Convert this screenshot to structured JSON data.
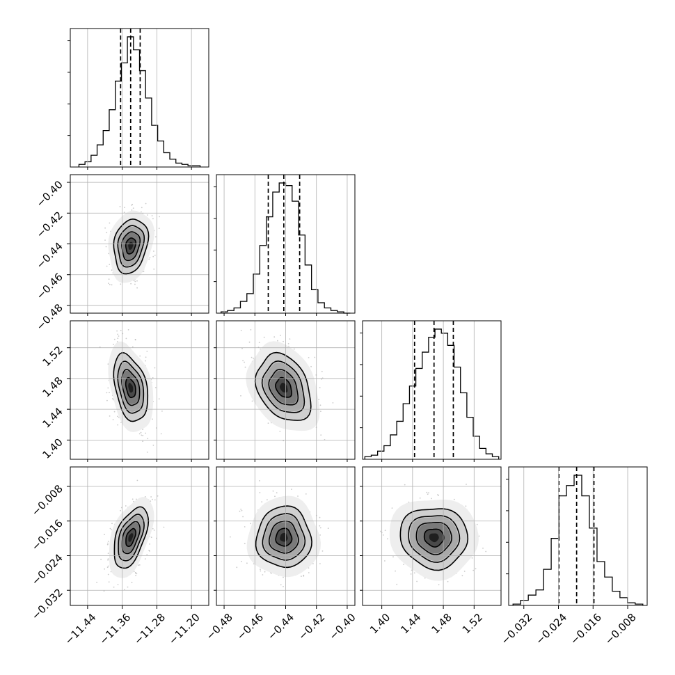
{
  "chart_data": {
    "type": "corner",
    "title": "",
    "parameters": [
      {
        "label": "",
        "range": [
          -11.48,
          -11.16
        ],
        "ticks": [
          -11.44,
          -11.36,
          -11.28,
          -11.2
        ],
        "tick_labels": [
          "−11.44",
          "−11.36",
          "−11.28",
          "−11.20"
        ],
        "quantiles": [
          -11.3637,
          -11.3405,
          -11.3185
        ]
      },
      {
        "label": "",
        "range": [
          -0.485,
          -0.395
        ],
        "ticks": [
          -0.48,
          -0.46,
          -0.44,
          -0.42,
          -0.4
        ],
        "tick_labels": [
          "−0.48",
          "−0.46",
          "−0.44",
          "−0.42",
          "−0.40"
        ],
        "quantiles": [
          -0.4513,
          -0.4412,
          -0.4309
        ]
      },
      {
        "label": "",
        "range": [
          1.375,
          1.555
        ],
        "ticks": [
          1.4,
          1.44,
          1.48,
          1.52
        ],
        "tick_labels": [
          "1.40",
          "1.44",
          "1.48",
          "1.52"
        ],
        "quantiles": [
          1.4426,
          1.4679,
          1.493
        ]
      },
      {
        "label": "",
        "range": [
          -0.0355,
          -0.0035
        ],
        "ticks": [
          -0.032,
          -0.024,
          -0.016,
          -0.008
        ],
        "tick_labels": [
          "−0.032",
          "−0.024",
          "−0.016",
          "−0.008"
        ],
        "quantiles": [
          -0.0239,
          -0.0198,
          -0.0158
        ]
      }
    ],
    "marginals": [
      {
        "param": 0,
        "bin_range": [
          -11.46,
          -11.18
        ],
        "counts": [
          2,
          4,
          9,
          17,
          28,
          44,
          66,
          80,
          100,
          90,
          74,
          53,
          32,
          20,
          11,
          6,
          3,
          2,
          1,
          1
        ]
      },
      {
        "param": 1,
        "bin_range": [
          -0.482,
          -0.398
        ],
        "counts": [
          1,
          2,
          4,
          9,
          15,
          30,
          52,
          74,
          93,
          100,
          98,
          86,
          60,
          37,
          18,
          8,
          4,
          2,
          1,
          0
        ]
      },
      {
        "param": 2,
        "bin_range": [
          1.378,
          1.552
        ],
        "counts": [
          2,
          3,
          6,
          10,
          18,
          28,
          41,
          54,
          67,
          79,
          90,
          96,
          93,
          84,
          68,
          49,
          31,
          17,
          8,
          4,
          2
        ]
      },
      {
        "param": 3,
        "bin_range": [
          -0.0345,
          -0.0045
        ],
        "counts": [
          1,
          4,
          8,
          12,
          28,
          52,
          85,
          93,
          101,
          85,
          60,
          34,
          22,
          11,
          6,
          2,
          1
        ]
      }
    ],
    "correlations": [
      [
        1,
        0,
        0,
        0
      ],
      [
        0.2,
        1,
        0,
        0
      ],
      [
        -0.35,
        -0.3,
        1,
        0
      ],
      [
        0.5,
        0.0,
        -0.05,
        1
      ]
    ],
    "grid": true,
    "histogram_style": "step",
    "quantile_lines": "dashed",
    "colors": {
      "line": "#000000",
      "grid": "#b0b0b0",
      "scatter": "#8a8a8a",
      "frame": "#000000"
    }
  }
}
